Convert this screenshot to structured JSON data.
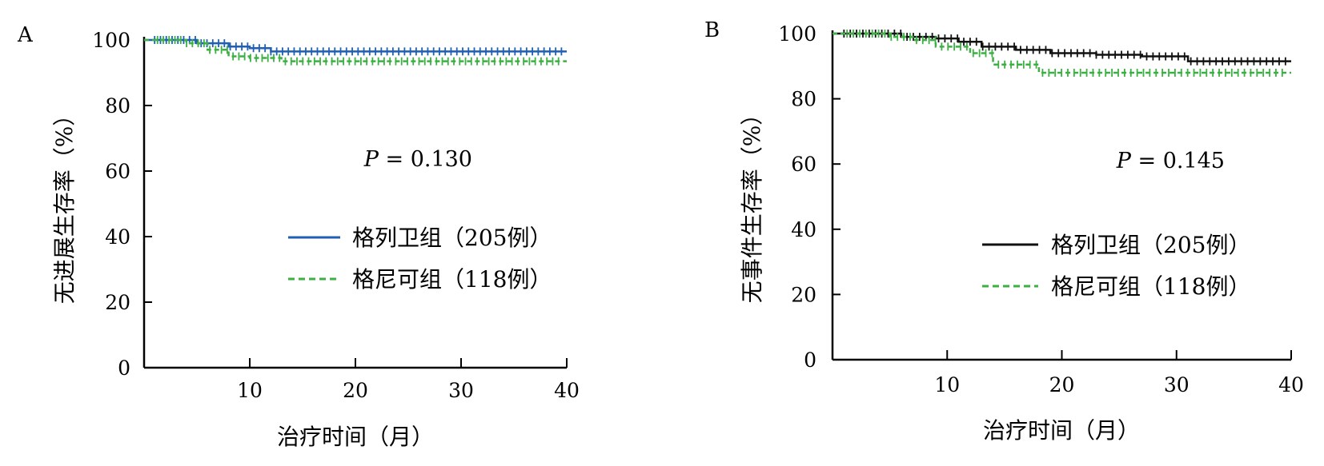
{
  "chart_data": [
    {
      "panel_label": "A",
      "type": "line",
      "subtype": "kaplan-meier",
      "xlabel": "治疗时间（月）",
      "ylabel": "无进展生存率（%）",
      "xticks": [
        "10",
        "20",
        "30",
        "40"
      ],
      "yticks": [
        "0",
        "20",
        "40",
        "60",
        "80",
        "100"
      ],
      "xlim": [
        0,
        40
      ],
      "ylim": [
        0,
        100
      ],
      "grid": false,
      "legend_position": "center-right",
      "annotation": {
        "italic": "P",
        "rest": " = 0.130"
      },
      "series": [
        {
          "name": "格列卫组（205例）",
          "color": "#1f5fb4",
          "dash": "solid",
          "censor_marks": true,
          "x": [
            0,
            2,
            5,
            8,
            10,
            12,
            40
          ],
          "y": [
            100,
            100,
            99,
            98,
            97.5,
            96.5,
            96.5
          ]
        },
        {
          "name": "格尼可组（118例）",
          "color": "#3cb043",
          "dash": "dashed",
          "censor_marks": true,
          "x": [
            0,
            2,
            4,
            6,
            8,
            10,
            13,
            40
          ],
          "y": [
            100,
            100,
            99,
            97,
            95,
            94.5,
            93.5,
            93.5
          ]
        }
      ]
    },
    {
      "panel_label": "B",
      "type": "line",
      "subtype": "kaplan-meier",
      "xlabel": "治疗时间（月）",
      "ylabel": "无事件生存率（%）",
      "xticks": [
        "10",
        "20",
        "30",
        "40"
      ],
      "yticks": [
        "0",
        "20",
        "40",
        "60",
        "80",
        "100"
      ],
      "xlim": [
        0,
        40
      ],
      "ylim": [
        0,
        100
      ],
      "grid": false,
      "legend_position": "center-right",
      "annotation": {
        "italic": "P",
        "rest": " = 0.145"
      },
      "series": [
        {
          "name": "格列卫组（205例）",
          "color": "#111111",
          "dash": "solid",
          "censor_marks": true,
          "x": [
            0,
            3,
            6,
            9,
            11,
            13,
            16,
            19,
            23,
            27,
            31,
            35,
            40
          ],
          "y": [
            100,
            100,
            99,
            98.5,
            97.5,
            96,
            95,
            94,
            93.5,
            93,
            91.5,
            91.5,
            91.5
          ]
        },
        {
          "name": "格尼可组（118例）",
          "color": "#3cb043",
          "dash": "dashed",
          "censor_marks": true,
          "x": [
            0,
            3,
            5,
            7,
            9,
            12,
            14,
            18,
            40
          ],
          "y": [
            100,
            100,
            99,
            98,
            96,
            94,
            90.5,
            88,
            88
          ]
        }
      ]
    }
  ]
}
